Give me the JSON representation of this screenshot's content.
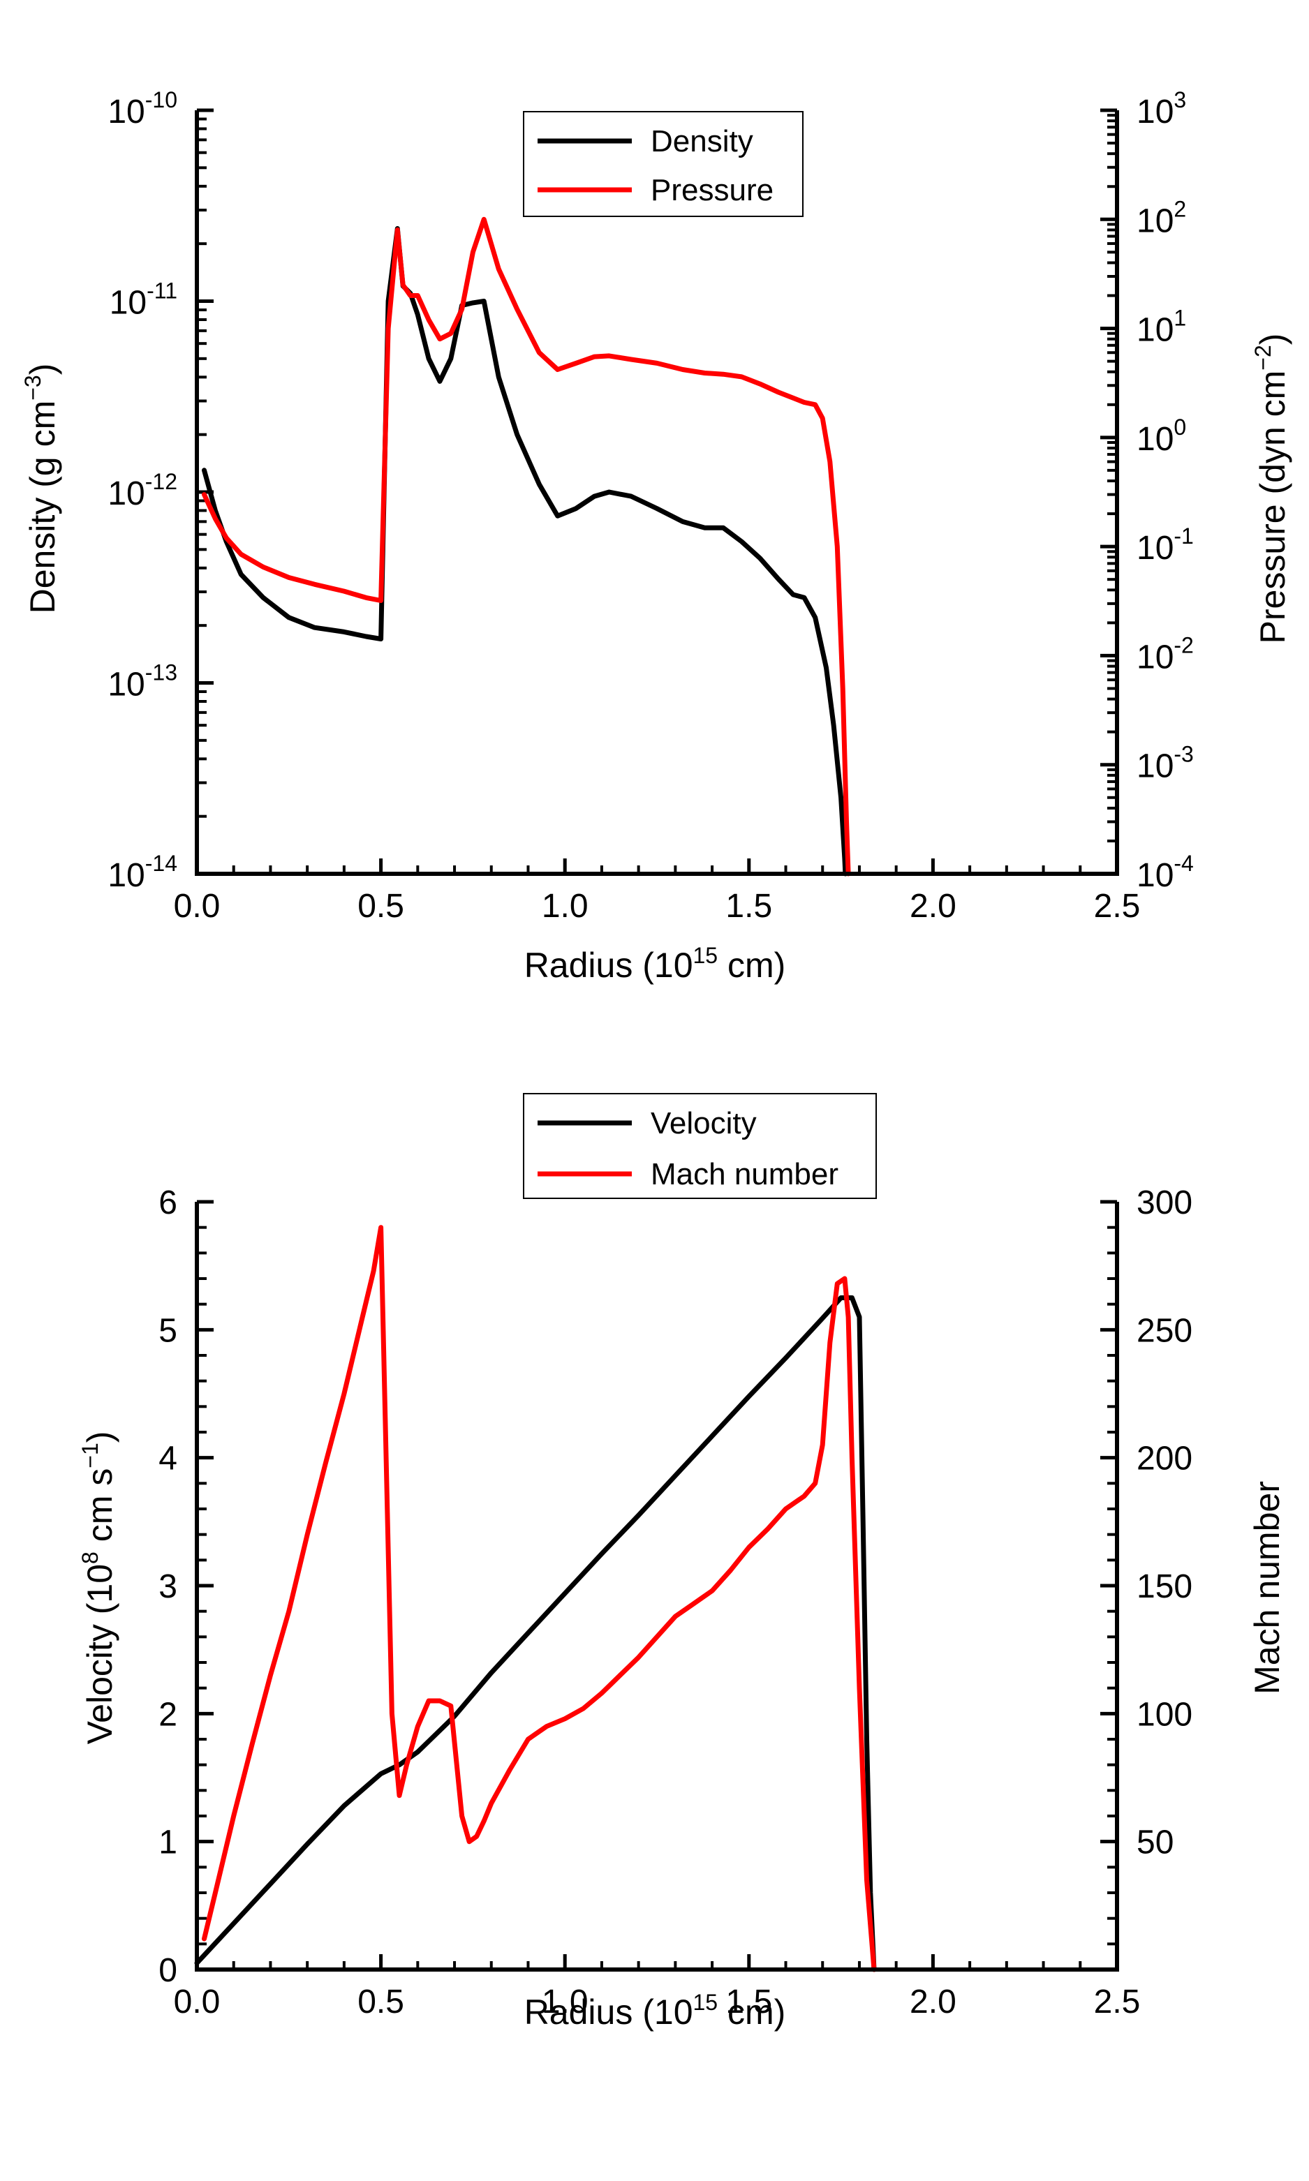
{
  "chart_data": [
    {
      "type": "line",
      "title": "",
      "xlabel": "Radius (10^15 cm)",
      "ylabel": "Density (g cm^-3)",
      "y2label": "Pressure (dyn cm^-2)",
      "xlim": [
        0.0,
        2.5
      ],
      "ylim": [
        1e-14,
        1e-10
      ],
      "y2lim": [
        0.0001,
        1000
      ],
      "yscale": "log",
      "y2scale": "log",
      "legend_position": "top-center",
      "x_ticks": [
        "0.0",
        "0.5",
        "1.0",
        "1.5",
        "2.0",
        "2.5"
      ],
      "y_ticks": [
        {
          "value": 1e-10,
          "base": "10",
          "exp": "-10"
        },
        {
          "value": 1e-11,
          "base": "10",
          "exp": "-11"
        },
        {
          "value": 1e-12,
          "base": "10",
          "exp": "-12"
        },
        {
          "value": 1e-13,
          "base": "10",
          "exp": "-13"
        },
        {
          "value": 1e-14,
          "base": "10",
          "exp": "-14"
        }
      ],
      "y2_ticks": [
        {
          "value": 1000,
          "base": "10",
          "exp": "3"
        },
        {
          "value": 100,
          "base": "10",
          "exp": "2"
        },
        {
          "value": 10,
          "base": "10",
          "exp": "1"
        },
        {
          "value": 1,
          "base": "10",
          "exp": "0"
        },
        {
          "value": 0.1,
          "base": "10",
          "exp": "-1"
        },
        {
          "value": 0.01,
          "base": "10",
          "exp": "-2"
        },
        {
          "value": 0.001,
          "base": "10",
          "exp": "-3"
        },
        {
          "value": 0.0001,
          "base": "10",
          "exp": "-4"
        }
      ],
      "series": [
        {
          "name": "Density",
          "color": "#000000",
          "axis": "left",
          "x": [
            0.02,
            0.05,
            0.08,
            0.12,
            0.18,
            0.25,
            0.32,
            0.4,
            0.46,
            0.5,
            0.52,
            0.545,
            0.56,
            0.58,
            0.6,
            0.63,
            0.66,
            0.69,
            0.72,
            0.75,
            0.78,
            0.82,
            0.87,
            0.93,
            0.98,
            1.03,
            1.08,
            1.12,
            1.18,
            1.25,
            1.32,
            1.38,
            1.43,
            1.48,
            1.53,
            1.58,
            1.62,
            1.65,
            1.68,
            1.71,
            1.73,
            1.75,
            1.76,
            1.762
          ],
          "y": [
            1.3e-12,
            8e-13,
            5.5e-13,
            3.7e-13,
            2.8e-13,
            2.2e-13,
            1.95e-13,
            1.85e-13,
            1.75e-13,
            1.7e-13,
            1e-11,
            2.4e-11,
            1.2e-11,
            1.1e-11,
            8.5e-12,
            5e-12,
            3.8e-12,
            5e-12,
            9.5e-12,
            9.8e-12,
            1e-11,
            4e-12,
            2e-12,
            1.1e-12,
            7.5e-13,
            8.2e-13,
            9.5e-13,
            1e-12,
            9.5e-13,
            8.2e-13,
            7e-13,
            6.5e-13,
            6.5e-13,
            5.5e-13,
            4.5e-13,
            3.5e-13,
            2.9e-13,
            2.8e-13,
            2.2e-13,
            1.2e-13,
            6e-14,
            2.5e-14,
            1.2e-14,
            1e-14
          ]
        },
        {
          "name": "Pressure",
          "color": "#ff0000",
          "axis": "right",
          "x": [
            0.02,
            0.05,
            0.08,
            0.12,
            0.18,
            0.25,
            0.32,
            0.4,
            0.46,
            0.5,
            0.52,
            0.545,
            0.56,
            0.58,
            0.6,
            0.63,
            0.66,
            0.69,
            0.72,
            0.75,
            0.78,
            0.82,
            0.87,
            0.93,
            0.98,
            1.03,
            1.08,
            1.12,
            1.18,
            1.25,
            1.32,
            1.38,
            1.43,
            1.48,
            1.53,
            1.58,
            1.62,
            1.65,
            1.68,
            1.7,
            1.72,
            1.74,
            1.755,
            1.765,
            1.77
          ],
          "y": [
            0.3,
            0.18,
            0.12,
            0.085,
            0.065,
            0.052,
            0.045,
            0.039,
            0.034,
            0.032,
            10,
            80,
            25,
            20,
            20,
            12,
            8,
            9,
            15,
            50,
            100,
            35,
            15,
            6,
            4.2,
            4.8,
            5.5,
            5.6,
            5.2,
            4.8,
            4.2,
            3.9,
            3.8,
            3.6,
            3.1,
            2.6,
            2.3,
            2.1,
            2.0,
            1.5,
            0.6,
            0.1,
            0.005,
            0.0003,
            0.0001
          ]
        }
      ]
    },
    {
      "type": "line",
      "title": "",
      "xlabel": "Radius (10^15 cm)",
      "ylabel": "Velocity (10^8 cm s^-1)",
      "y2label": "Mach number",
      "xlim": [
        0.0,
        2.5
      ],
      "ylim": [
        0,
        6
      ],
      "y2lim": [
        0,
        300
      ],
      "legend_position": "top-center",
      "x_ticks": [
        "0.0",
        "0.5",
        "1.0",
        "1.5",
        "2.0",
        "2.5"
      ],
      "y_ticks": [
        "0",
        "1",
        "2",
        "3",
        "4",
        "5",
        "6"
      ],
      "y2_ticks": [
        "50",
        "100",
        "150",
        "200",
        "250",
        "300"
      ],
      "series": [
        {
          "name": "Velocity",
          "color": "#000000",
          "axis": "left",
          "x": [
            0.0,
            0.1,
            0.2,
            0.3,
            0.4,
            0.5,
            0.55,
            0.6,
            0.7,
            0.8,
            0.9,
            1.0,
            1.1,
            1.2,
            1.3,
            1.4,
            1.5,
            1.6,
            1.7,
            1.75,
            1.78,
            1.8,
            1.81,
            1.82,
            1.83,
            1.84
          ],
          "y": [
            0.05,
            0.36,
            0.67,
            0.98,
            1.28,
            1.53,
            1.6,
            1.7,
            1.98,
            2.32,
            2.63,
            2.94,
            3.25,
            3.55,
            3.86,
            4.17,
            4.48,
            4.78,
            5.09,
            5.25,
            5.25,
            5.1,
            3.5,
            1.8,
            0.6,
            0.0
          ]
        },
        {
          "name": "Mach number",
          "color": "#ff0000",
          "axis": "right",
          "x": [
            0.02,
            0.05,
            0.1,
            0.15,
            0.2,
            0.25,
            0.3,
            0.35,
            0.4,
            0.45,
            0.48,
            0.5,
            0.53,
            0.55,
            0.57,
            0.6,
            0.63,
            0.66,
            0.69,
            0.72,
            0.74,
            0.76,
            0.78,
            0.8,
            0.85,
            0.9,
            0.95,
            1.0,
            1.05,
            1.1,
            1.15,
            1.2,
            1.25,
            1.3,
            1.35,
            1.4,
            1.45,
            1.5,
            1.55,
            1.6,
            1.65,
            1.68,
            1.7,
            1.72,
            1.74,
            1.76,
            1.77,
            1.78,
            1.8,
            1.82,
            1.84
          ],
          "y": [
            12,
            30,
            60,
            88,
            115,
            140,
            170,
            198,
            225,
            255,
            273,
            290,
            100,
            68,
            80,
            95,
            105,
            105,
            103,
            60,
            50,
            52,
            58,
            65,
            78,
            90,
            95,
            98,
            102,
            108,
            115,
            122,
            130,
            138,
            143,
            148,
            156,
            165,
            172,
            180,
            185,
            190,
            205,
            245,
            268,
            270,
            255,
            200,
            110,
            35,
            0
          ]
        }
      ]
    }
  ],
  "legends": {
    "top": [
      "Density",
      "Pressure"
    ],
    "bottom": [
      "Velocity",
      "Mach number"
    ]
  },
  "labels": {
    "top_xlabel_pre": "Radius (10",
    "top_xlabel_sup": "15",
    "top_xlabel_post": " cm)",
    "top_ylabel_pre": "Density (g cm",
    "top_ylabel_sup": "−3",
    "top_ylabel_post": ")",
    "top_y2label_pre": "Pressure (dyn cm",
    "top_y2label_sup": "−2",
    "top_y2label_post": ")",
    "bottom_xlabel_pre": "Radius (10",
    "bottom_xlabel_sup": "15",
    "bottom_xlabel_post": " cm)",
    "bottom_ylabel_pre": "Velocity (10",
    "bottom_ylabel_sup1": "8",
    "bottom_ylabel_mid": " cm s",
    "bottom_ylabel_sup2": "−1",
    "bottom_ylabel_post": ")",
    "bottom_y2label": "Mach number"
  }
}
